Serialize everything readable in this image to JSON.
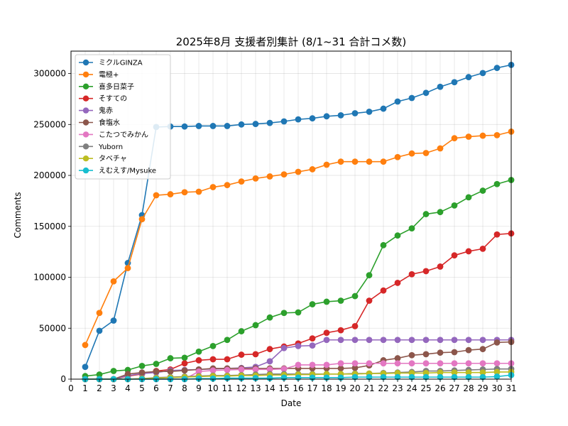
{
  "chart_data": {
    "type": "line",
    "title": "2025年8月 支援者別集計 (8/1~31 合計コメ数)",
    "xlabel": "Date",
    "ylabel": "Comments",
    "xlim": [
      0,
      31
    ],
    "ylim": [
      0,
      322000
    ],
    "x": [
      1,
      2,
      3,
      4,
      5,
      6,
      7,
      8,
      9,
      10,
      11,
      12,
      13,
      14,
      15,
      16,
      17,
      18,
      19,
      20,
      21,
      22,
      23,
      24,
      25,
      26,
      27,
      28,
      29,
      30,
      31
    ],
    "xticks": [
      "0",
      "1",
      "2",
      "3",
      "4",
      "5",
      "6",
      "7",
      "8",
      "9",
      "10",
      "11",
      "12",
      "13",
      "14",
      "15",
      "16",
      "17",
      "18",
      "19",
      "20",
      "21",
      "22",
      "23",
      "24",
      "25",
      "26",
      "27",
      "28",
      "29",
      "30",
      "31"
    ],
    "yticks": [
      "0",
      "50000",
      "100000",
      "150000",
      "200000",
      "250000",
      "300000"
    ],
    "grid": true,
    "legend_position": "top-left",
    "series": [
      {
        "name": "ミクルGINZA",
        "color": "#1f77b4",
        "values": [
          12000,
          47500,
          57500,
          114000,
          161000,
          247500,
          248000,
          248000,
          248500,
          248500,
          248500,
          250000,
          250500,
          251500,
          253000,
          255000,
          256000,
          258000,
          259000,
          261000,
          262500,
          265500,
          272500,
          276000,
          281000,
          287000,
          291500,
          296500,
          300500,
          305500,
          308500
        ]
      },
      {
        "name": "電極+",
        "color": "#ff7f0e",
        "values": [
          33500,
          65000,
          96000,
          109000,
          157000,
          180500,
          181500,
          183500,
          184000,
          188500,
          190500,
          194000,
          197000,
          199000,
          201000,
          203500,
          206000,
          210500,
          213500,
          213500,
          213500,
          213500,
          218000,
          221500,
          222000,
          226500,
          236500,
          238000,
          239000,
          239500,
          243000
        ]
      },
      {
        "name": "喜多日菜子",
        "color": "#2ca02c",
        "values": [
          3000,
          4500,
          8000,
          9000,
          13000,
          15000,
          20500,
          21000,
          27000,
          32500,
          38500,
          47000,
          53000,
          60500,
          65000,
          65500,
          73500,
          76000,
          77000,
          81500,
          102000,
          131500,
          141000,
          148000,
          162000,
          164000,
          170500,
          178500,
          185000,
          191500,
          195500
        ]
      },
      {
        "name": "そすての",
        "color": "#d62728",
        "values": [
          0,
          0,
          0,
          3000,
          5000,
          8000,
          9500,
          15500,
          18500,
          19500,
          19500,
          24000,
          24500,
          29500,
          32000,
          35000,
          40000,
          45500,
          48000,
          52000,
          77000,
          87000,
          94500,
          103000,
          106000,
          110500,
          121500,
          125500,
          128000,
          142000,
          143000
        ]
      },
      {
        "name": "鬼赤",
        "color": "#9467bd",
        "values": [
          0,
          0,
          0,
          3500,
          5500,
          6500,
          8500,
          9000,
          9500,
          10000,
          10500,
          11000,
          12000,
          17500,
          30500,
          32500,
          33000,
          38500,
          38500,
          38500,
          38500,
          38500,
          38500,
          38500,
          38500,
          38500,
          38500,
          38500,
          38500,
          38500,
          38500
        ]
      },
      {
        "name": "食塩水",
        "color": "#8c564b",
        "values": [
          0,
          0,
          0,
          5000,
          6500,
          7500,
          7500,
          8500,
          9500,
          10500,
          10500,
          10500,
          10500,
          10500,
          10500,
          10500,
          10500,
          10500,
          10500,
          11000,
          13500,
          18500,
          20500,
          23500,
          24500,
          26000,
          26500,
          28500,
          29500,
          36000,
          36500
        ]
      },
      {
        "name": "こたつでみかん",
        "color": "#e377c2",
        "values": [
          0,
          0,
          0,
          0,
          0,
          0,
          0,
          0,
          7500,
          8500,
          9000,
          9500,
          9500,
          9500,
          10000,
          14000,
          14000,
          14000,
          15500,
          15500,
          15500,
          15500,
          15500,
          15500,
          15500,
          15500,
          15500,
          15500,
          15500,
          15500,
          15500
        ]
      },
      {
        "name": "Yuborn",
        "color": "#7f7f7f",
        "values": [
          0,
          0,
          0,
          0,
          500,
          1500,
          2000,
          2500,
          3000,
          3500,
          3500,
          4000,
          4500,
          5000,
          5000,
          5000,
          5000,
          5000,
          5000,
          5500,
          5500,
          6000,
          6500,
          7000,
          8000,
          8000,
          8500,
          9000,
          9500,
          10000,
          10000
        ]
      },
      {
        "name": "タベチャ",
        "color": "#bcbd22",
        "values": [
          0,
          0,
          0,
          0,
          500,
          1000,
          1500,
          2000,
          2500,
          3000,
          3000,
          3500,
          3500,
          4000,
          4000,
          4500,
          4500,
          5000,
          5000,
          5000,
          5500,
          5500,
          6000,
          6000,
          6000,
          6500,
          6500,
          6500,
          6500,
          7000,
          7000
        ]
      },
      {
        "name": "えむえす/Mysuke",
        "color": "#17becf",
        "values": [
          0,
          0,
          0,
          0,
          0,
          0,
          0,
          0,
          500,
          500,
          1000,
          1000,
          1000,
          1000,
          1500,
          1500,
          1500,
          1500,
          1500,
          2000,
          2000,
          2000,
          2000,
          2000,
          2000,
          2000,
          2000,
          2000,
          2000,
          2500,
          4000
        ]
      }
    ]
  }
}
